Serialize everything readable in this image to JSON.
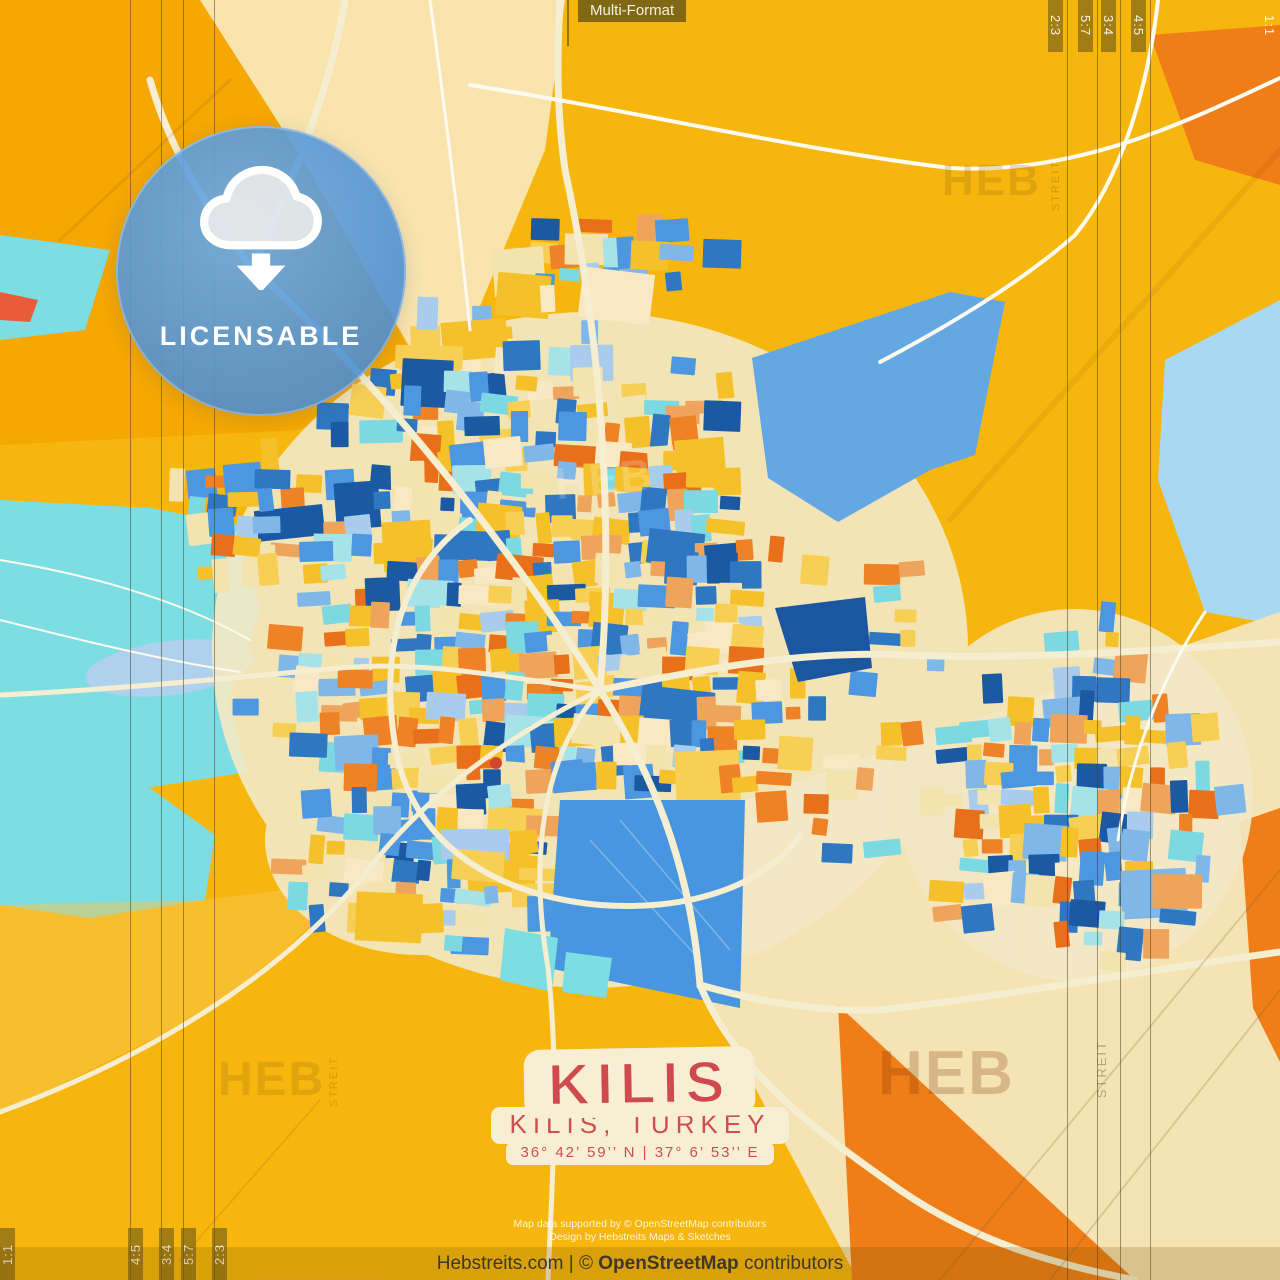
{
  "header": {
    "format_label": "Multi-Format"
  },
  "corner_marks": {
    "top_right": [
      "2:3",
      "5:7",
      "3:4",
      "4:5"
    ],
    "top_right_full": "1:1",
    "bottom_left": [
      "4:5",
      "3:4",
      "5:7",
      "2:3"
    ],
    "bottom_left_full": "1:1"
  },
  "badge": {
    "label": "LICENSABLE",
    "icon": "cloud-download-icon"
  },
  "title_block": {
    "city": "KILIS",
    "region": "KILIS, TURKEY",
    "coordinates": "36° 42’ 59’’ N | 37° 6’ 53’’ E"
  },
  "attribution": {
    "line1": "Map data supported by © OpenStreetMap contributors",
    "line2": "Design by Hebstreits Maps & Sketches"
  },
  "footer": {
    "site": "Hebstreits.com",
    "divider": "|",
    "copyright": "©",
    "map_source": "OpenStreetMap",
    "suffix": "contributors"
  },
  "watermark": {
    "primary": "HEB",
    "secondary": "STREIT"
  },
  "map": {
    "colors": {
      "base_yellow": "#F7B60E",
      "deep_yellow": "#F5A702",
      "cream": "#F9E4AE",
      "cream_dark": "#F5E3B4",
      "cyan": "#7CDEE2",
      "pale_blue": "#A9D8F2",
      "medium_blue": "#4896DF",
      "light_blue_wedge": "#63A8E3",
      "dark_blue": "#1A57A0",
      "orange": "#EF7D18",
      "red_accent": "#E85C3C",
      "lavender": "#AFD1EE",
      "road_cream": "#F6EED0",
      "road_white": "#FDFAF0",
      "title_red": "#CE4A4C",
      "badge_blue": "#4A90D9"
    },
    "mosaic_palette": [
      "#2F77C0",
      "#1B5AA2",
      "#4C97DF",
      "#7FB7E8",
      "#A9CBEC",
      "#7CD9E2",
      "#A5E3E8",
      "#F4C12B",
      "#F8CF55",
      "#F3E3AE",
      "#F8E9C4",
      "#EF8126",
      "#E8701B",
      "#EFA45C"
    ],
    "mosaic_weights": [
      2.2,
      1.6,
      2.6,
      1.4,
      1.2,
      1.0,
      0.8,
      3.4,
      1.8,
      2.0,
      1.0,
      1.6,
      1.2,
      1.4
    ]
  }
}
